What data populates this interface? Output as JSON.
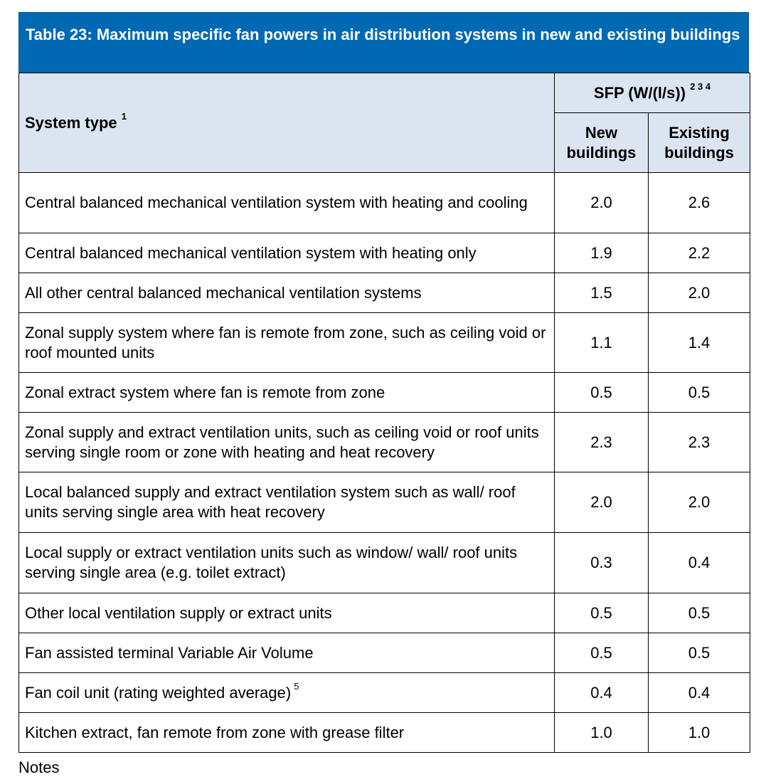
{
  "table": {
    "title": "Table 23: Maximum specific fan powers in air distribution systems in new and existing buildings",
    "header": {
      "system_type_label": "System type",
      "system_type_note": "1",
      "sfp_label": "SFP (W/(l/s))",
      "sfp_notes": "2 3 4",
      "new_label_line1": "New",
      "new_label_line2": "buildings",
      "existing_label_line1": "Existing",
      "existing_label_line2": "buildings"
    },
    "rows": [
      {
        "system": "Central balanced mechanical ventilation system with heating and cooling",
        "note": "",
        "new": "2.0",
        "existing": "2.6"
      },
      {
        "system": "Central balanced mechanical ventilation system with heating only",
        "note": "",
        "new": "1.9",
        "existing": "2.2"
      },
      {
        "system": "All other central balanced mechanical ventilation systems",
        "note": "",
        "new": "1.5",
        "existing": "2.0"
      },
      {
        "system": "Zonal supply system where fan is remote from zone, such as ceiling void or roof mounted units",
        "note": "",
        "new": "1.1",
        "existing": "1.4"
      },
      {
        "system": "Zonal extract system where fan is remote from zone",
        "note": "",
        "new": "0.5",
        "existing": "0.5"
      },
      {
        "system": "Zonal supply and extract ventilation units, such as ceiling void or roof units serving single room or zone with heating and heat recovery",
        "note": "",
        "new": "2.3",
        "existing": "2.3"
      },
      {
        "system": "Local balanced supply and extract ventilation system such as wall/ roof units serving single area with heat recovery",
        "note": "",
        "new": "2.0",
        "existing": "2.0"
      },
      {
        "system": "Local supply or extract ventilation units such as window/ wall/ roof units serving single area (e.g. toilet extract)",
        "note": "",
        "new": "0.3",
        "existing": "0.4"
      },
      {
        "system": "Other local ventilation supply or extract units",
        "note": "",
        "new": "0.5",
        "existing": "0.5"
      },
      {
        "system": "Fan assisted terminal Variable Air Volume",
        "note": "",
        "new": "0.5",
        "existing": "0.5"
      },
      {
        "system": "Fan coil unit (rating weighted average)",
        "note": "5",
        "new": "0.4",
        "existing": "0.4"
      },
      {
        "system": "Kitchen extract, fan remote from zone with grease filter",
        "note": "",
        "new": "1.0",
        "existing": "1.0"
      }
    ],
    "notes_label": "Notes"
  },
  "colors": {
    "title_bg": "#0069b4",
    "header_bg": "#dbe5f1"
  }
}
